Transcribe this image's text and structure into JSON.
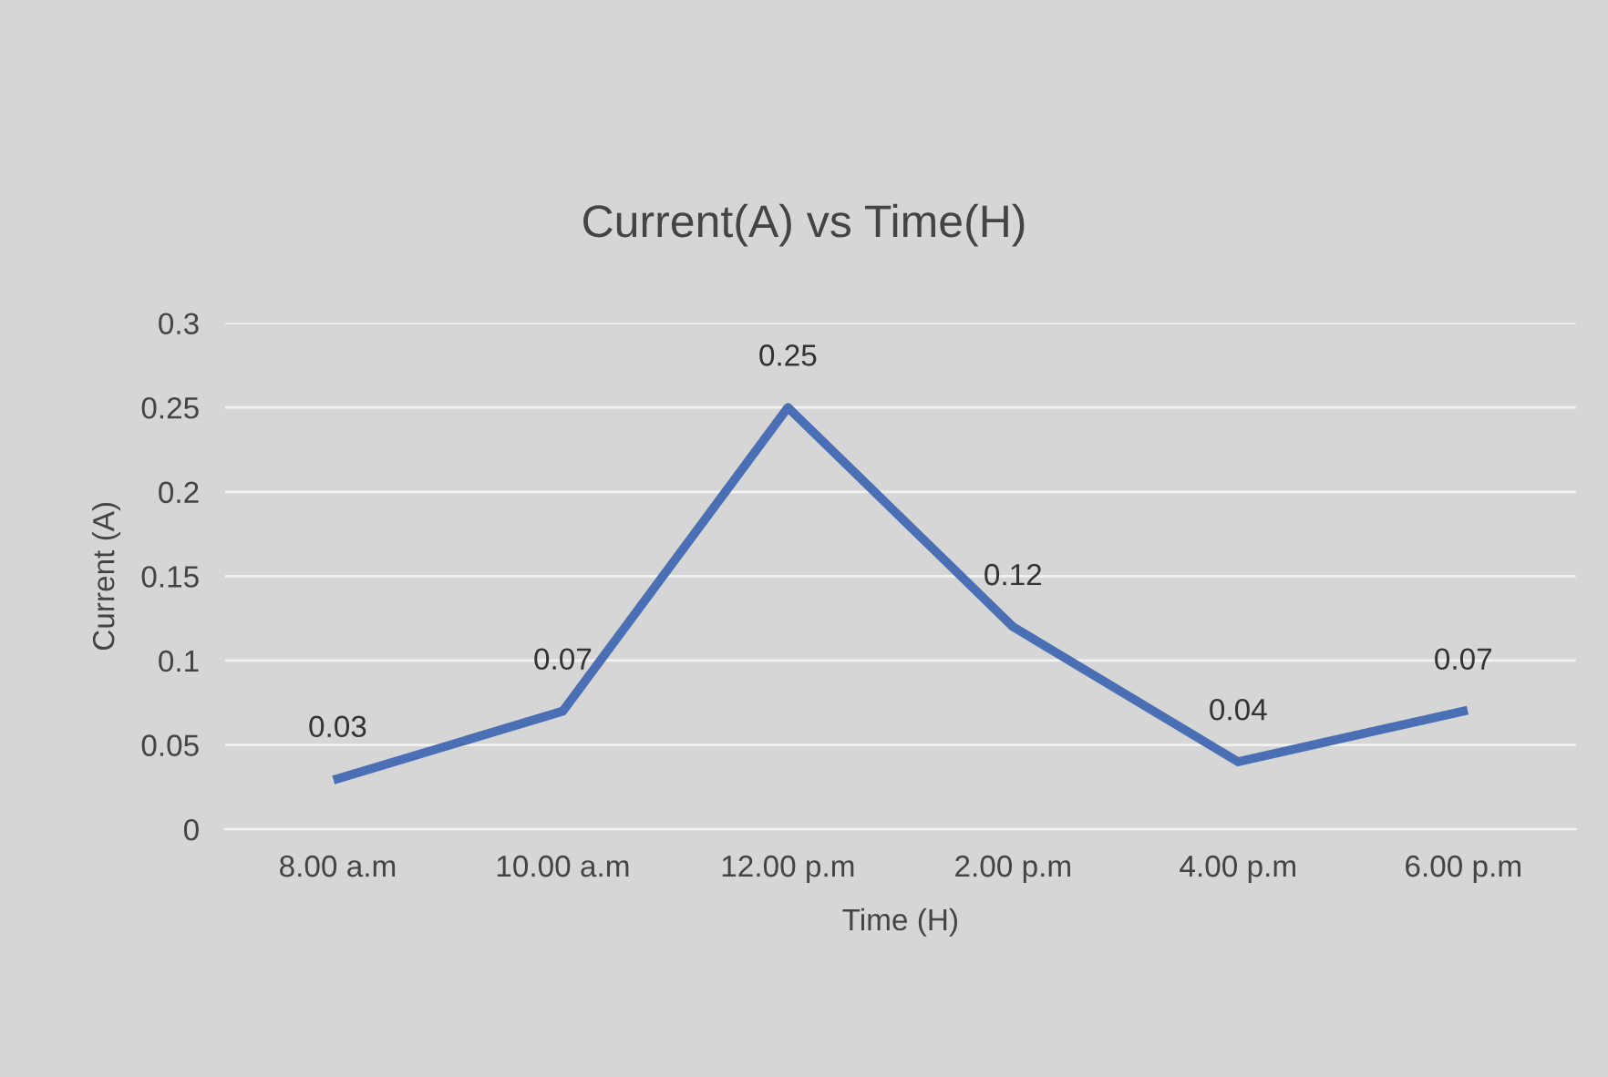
{
  "chart_data": {
    "type": "line",
    "title": "Current(A) vs Time(H)",
    "xlabel": "Time (H)",
    "ylabel": "Current (A)",
    "categories": [
      "8.00 a.m",
      "10.00 a.m",
      "12.00 p.m",
      "2.00 p.m",
      "4.00 p.m",
      "6.00 p.m"
    ],
    "series": [
      {
        "color": "#4a6fb5",
        "values": [
          0.03,
          0.07,
          0.25,
          0.12,
          0.04,
          0.07
        ]
      }
    ],
    "ylim": [
      0,
      0.3
    ],
    "yticks": [
      0,
      0.05,
      0.1,
      0.15,
      0.2,
      0.25,
      0.3
    ],
    "grid": "y",
    "data_labels": true
  }
}
